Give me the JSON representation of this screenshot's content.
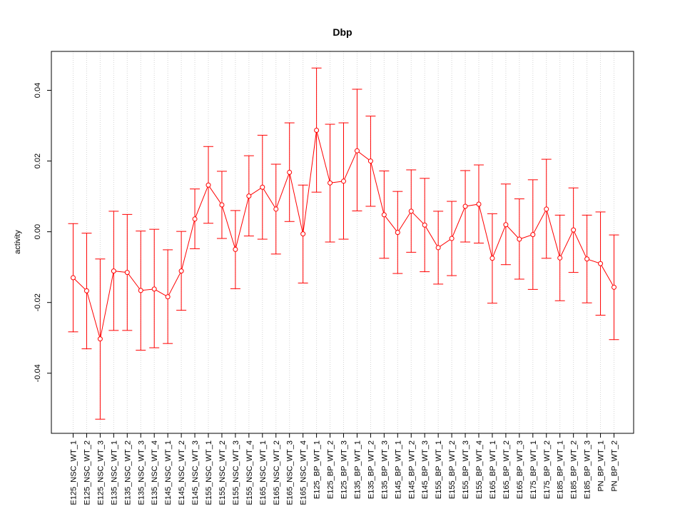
{
  "chart_data": {
    "type": "line",
    "title": "Dbp",
    "xlabel": "",
    "ylabel": "activity",
    "ylim": [
      -0.057,
      0.051
    ],
    "yticks": [
      -0.04,
      -0.02,
      0.0,
      0.02,
      0.04
    ],
    "ytick_labels": [
      "-0.04",
      "-0.02",
      "0.00",
      "0.02",
      "0.04"
    ],
    "grid": "vertical dotted",
    "color": "#ff0000",
    "categories": [
      "E125_NSC_WT_1",
      "E125_NSC_WT_2",
      "E125_NSC_WT_3",
      "E135_NSC_WT_1",
      "E135_NSC_WT_2",
      "E135_NSC_WT_3",
      "E135_NSC_WT_4",
      "E145_NSC_WT_1",
      "E145_NSC_WT_2",
      "E145_NSC_WT_3",
      "E155_NSC_WT_1",
      "E155_NSC_WT_2",
      "E155_NSC_WT_3",
      "E155_NSC_WT_4",
      "E165_NSC_WT_1",
      "E165_NSC_WT_2",
      "E165_NSC_WT_3",
      "E165_NSC_WT_4",
      "E125_BP_WT_1",
      "E125_BP_WT_2",
      "E125_BP_WT_3",
      "E135_BP_WT_1",
      "E135_BP_WT_2",
      "E135_BP_WT_3",
      "E145_BP_WT_1",
      "E145_BP_WT_2",
      "E145_BP_WT_3",
      "E155_BP_WT_1",
      "E155_BP_WT_2",
      "E155_BP_WT_3",
      "E155_BP_WT_4",
      "E165_BP_WT_1",
      "E165_BP_WT_2",
      "E165_BP_WT_3",
      "E175_BP_WT_1",
      "E175_BP_WT_2",
      "E185_BP_WT_1",
      "E185_BP_WT_2",
      "E185_BP_WT_3",
      "PN_BP_WT_1",
      "PN_BP_WT_2"
    ],
    "values": [
      -0.013,
      -0.0167,
      -0.0303,
      -0.0111,
      -0.0115,
      -0.0166,
      -0.0162,
      -0.0184,
      -0.0111,
      0.0036,
      0.0132,
      0.0076,
      -0.005,
      0.0101,
      0.0126,
      0.0064,
      0.0168,
      -0.0006,
      0.0287,
      0.0138,
      0.0143,
      0.0229,
      0.02,
      0.0048,
      -0.0002,
      0.0058,
      0.0019,
      -0.0045,
      -0.0019,
      0.0072,
      0.0078,
      -0.0075,
      0.002,
      -0.0021,
      -0.0008,
      0.0064,
      -0.0074,
      0.0005,
      -0.0077,
      -0.009,
      -0.0157
    ],
    "upper": [
      0.0023,
      -0.0004,
      -0.0077,
      0.0058,
      0.0049,
      0.0002,
      0.0007,
      -0.0051,
      0.0001,
      0.0121,
      0.0241,
      0.0171,
      0.006,
      0.0215,
      0.0273,
      0.0191,
      0.0308,
      0.0132,
      0.0463,
      0.0304,
      0.0308,
      0.0403,
      0.0327,
      0.0172,
      0.0114,
      0.0175,
      0.0151,
      0.0058,
      0.0086,
      0.0173,
      0.0189,
      0.0051,
      0.0135,
      0.0093,
      0.0147,
      0.0205,
      0.0047,
      0.0124,
      0.0047,
      0.0056,
      -0.0009
    ],
    "lower": [
      -0.0283,
      -0.0331,
      -0.053,
      -0.0279,
      -0.0279,
      -0.0335,
      -0.0328,
      -0.0316,
      -0.0222,
      -0.0048,
      0.0024,
      -0.0019,
      -0.0161,
      -0.0012,
      -0.0021,
      -0.0063,
      0.0029,
      -0.0145,
      0.0112,
      -0.0029,
      -0.0021,
      0.0059,
      0.0072,
      -0.0075,
      -0.0118,
      -0.0058,
      -0.0113,
      -0.0148,
      -0.0124,
      -0.0029,
      -0.0032,
      -0.0202,
      -0.0093,
      -0.0134,
      -0.0163,
      -0.0075,
      -0.0195,
      -0.0115,
      -0.0201,
      -0.0236,
      -0.0305
    ]
  }
}
